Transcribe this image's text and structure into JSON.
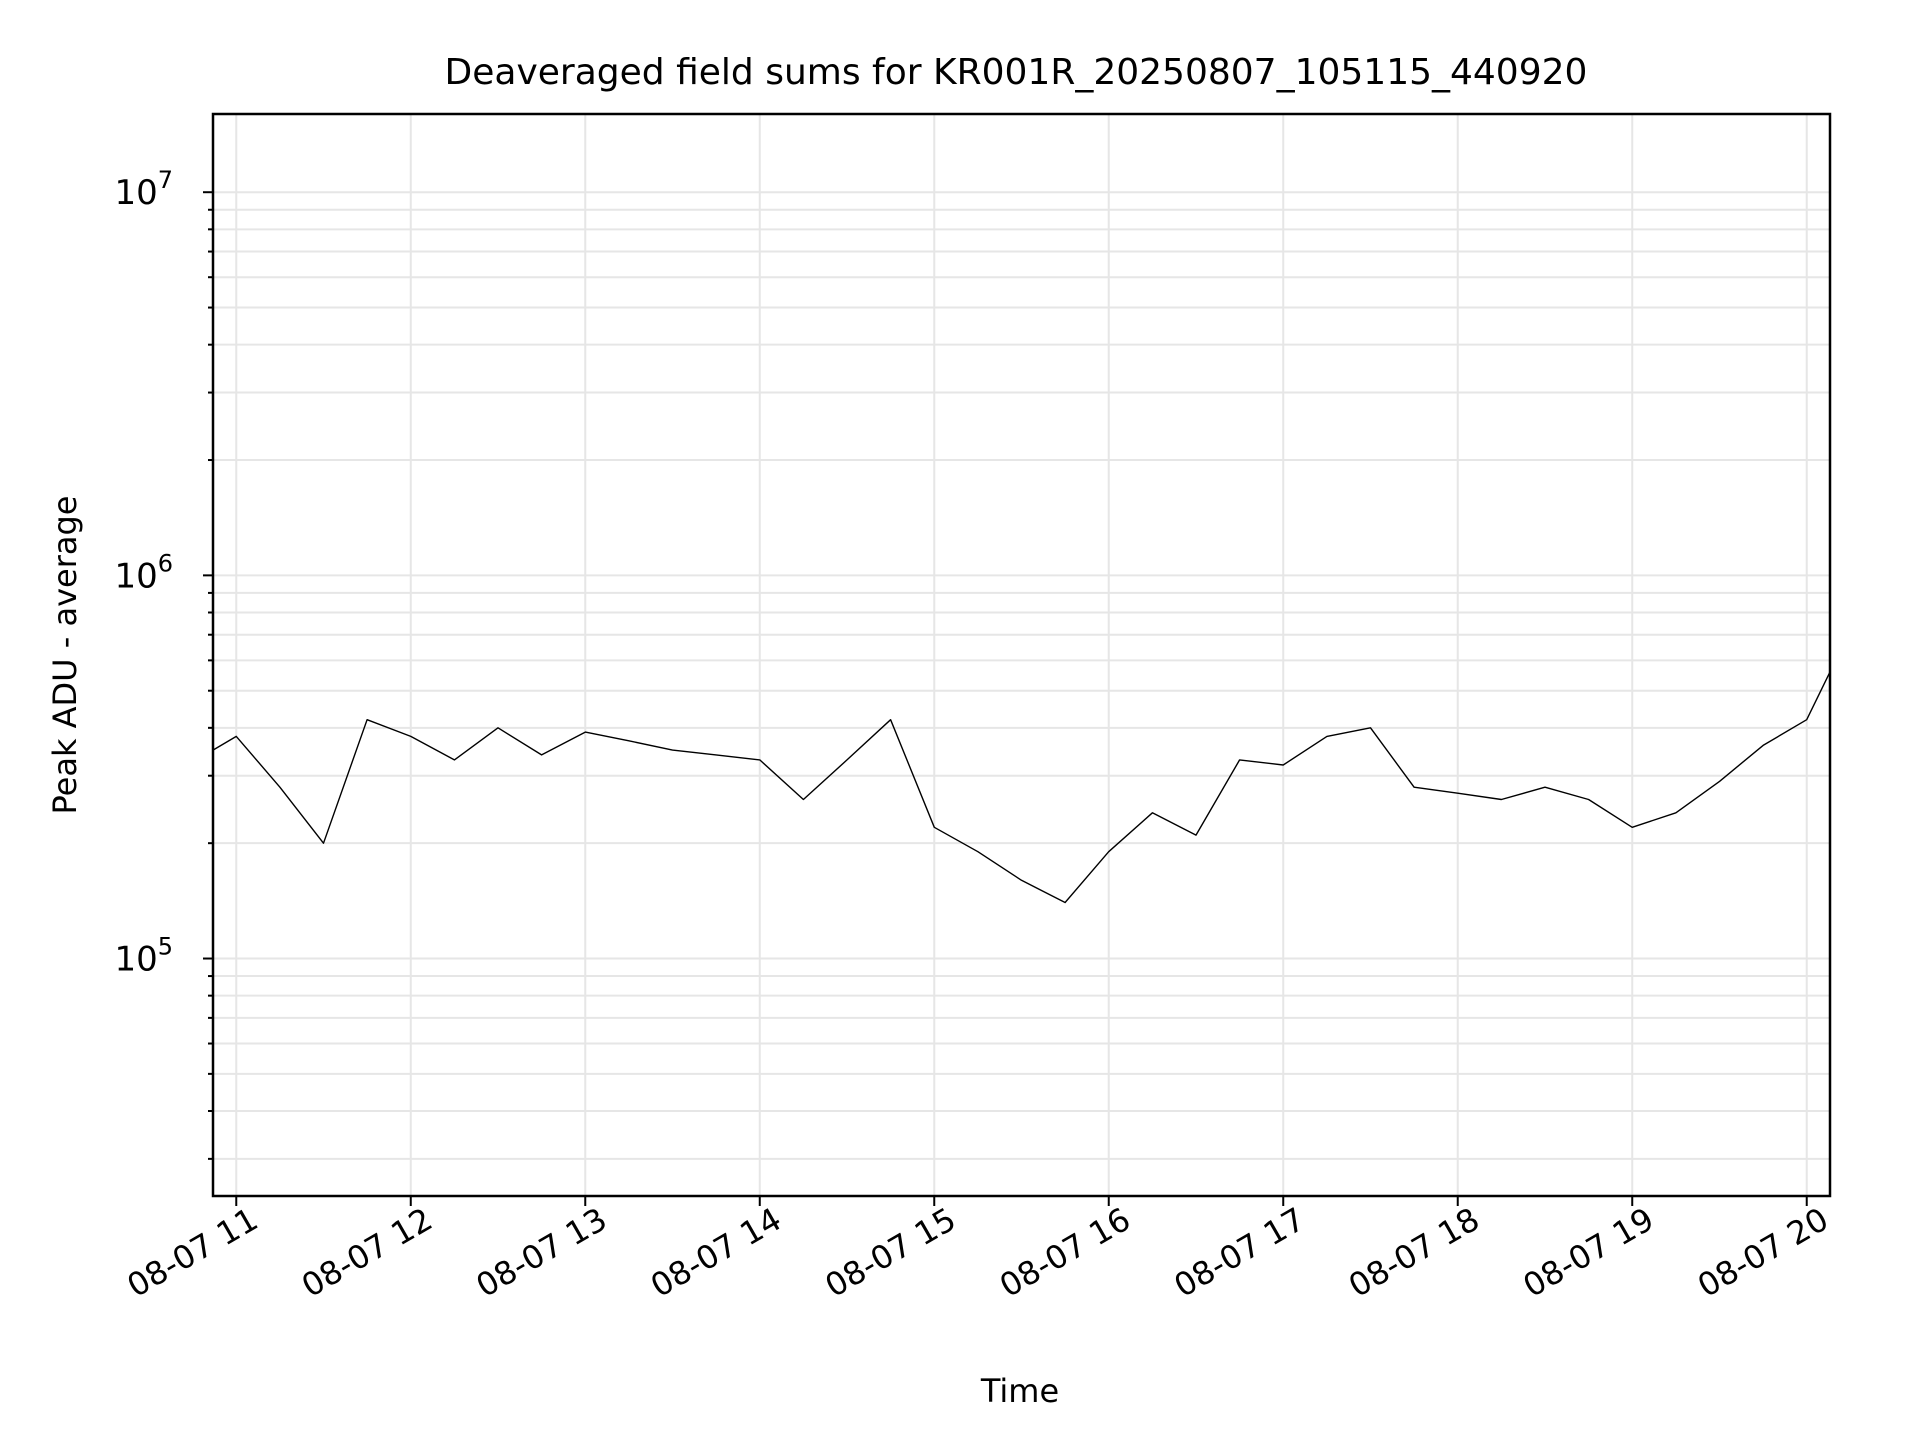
{
  "chart_data": {
    "type": "line",
    "title": "Deaveraged field sums for KR001R_20250807_105115_440920",
    "xlabel": "Time",
    "ylabel": "Peak ADU - average",
    "yscale": "log",
    "ylim": [
      24000,
      16000000
    ],
    "xlim": [
      "2025-08-07 10:52",
      "2025-08-07 20:08"
    ],
    "grid": true,
    "line_color": "#000000",
    "x_ticks": [
      {
        "label": "08-07 11",
        "time": "2025-08-07 11:00"
      },
      {
        "label": "08-07 12",
        "time": "2025-08-07 12:00"
      },
      {
        "label": "08-07 13",
        "time": "2025-08-07 13:00"
      },
      {
        "label": "08-07 14",
        "time": "2025-08-07 14:00"
      },
      {
        "label": "08-07 15",
        "time": "2025-08-07 15:00"
      },
      {
        "label": "08-07 16",
        "time": "2025-08-07 16:00"
      },
      {
        "label": "08-07 17",
        "time": "2025-08-07 17:00"
      },
      {
        "label": "08-07 18",
        "time": "2025-08-07 18:00"
      },
      {
        "label": "08-07 19",
        "time": "2025-08-07 19:00"
      },
      {
        "label": "08-07 20",
        "time": "2025-08-07 20:00"
      }
    ],
    "y_ticks": [
      {
        "base": "10",
        "exp": "5",
        "value": 100000
      },
      {
        "base": "10",
        "exp": "6",
        "value": 1000000
      },
      {
        "base": "10",
        "exp": "7",
        "value": 10000000
      }
    ],
    "series": [
      {
        "x": [
          "2025-08-07 10:52",
          "2025-08-07 11:00",
          "2025-08-07 11:15",
          "2025-08-07 11:30",
          "2025-08-07 11:45",
          "2025-08-07 12:00",
          "2025-08-07 12:15",
          "2025-08-07 12:30",
          "2025-08-07 12:45",
          "2025-08-07 13:00",
          "2025-08-07 13:15",
          "2025-08-07 13:30",
          "2025-08-07 13:45",
          "2025-08-07 14:00",
          "2025-08-07 14:15",
          "2025-08-07 14:30",
          "2025-08-07 14:45",
          "2025-08-07 15:00",
          "2025-08-07 15:15",
          "2025-08-07 15:30",
          "2025-08-07 15:45",
          "2025-08-07 16:00",
          "2025-08-07 16:15",
          "2025-08-07 16:30",
          "2025-08-07 16:45",
          "2025-08-07 17:00",
          "2025-08-07 17:15",
          "2025-08-07 17:30",
          "2025-08-07 17:45",
          "2025-08-07 18:00",
          "2025-08-07 18:15",
          "2025-08-07 18:30",
          "2025-08-07 18:45",
          "2025-08-07 19:00",
          "2025-08-07 19:15",
          "2025-08-07 19:30",
          "2025-08-07 19:45",
          "2025-08-07 20:00",
          "2025-08-07 20:08"
        ],
        "y": [
          350000,
          380000,
          280000,
          200000,
          420000,
          380000,
          330000,
          400000,
          340000,
          390000,
          370000,
          350000,
          340000,
          330000,
          260000,
          330000,
          420000,
          220000,
          190000,
          160000,
          140000,
          190000,
          240000,
          210000,
          330000,
          320000,
          380000,
          400000,
          280000,
          270000,
          260000,
          280000,
          260000,
          220000,
          240000,
          290000,
          360000,
          420000,
          560000
        ]
      }
    ]
  }
}
